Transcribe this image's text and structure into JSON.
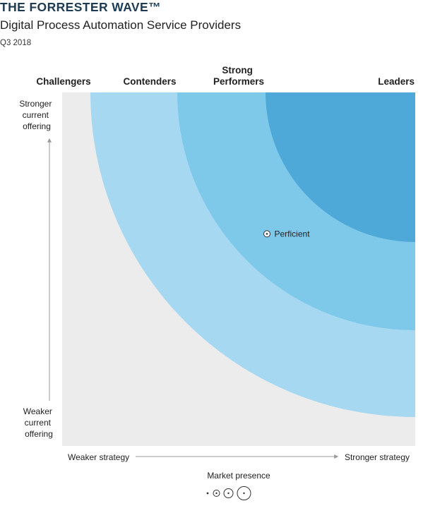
{
  "header": {
    "brand": "THE FORRESTER WAVE™",
    "subtitle": "Digital Process Automation Service Providers",
    "date": "Q3 2018"
  },
  "chart_data": {
    "type": "scatter",
    "title": "Digital Process Automation Service Providers",
    "segments": [
      {
        "label_lines": [
          "Challengers"
        ],
        "color": "#ececec"
      },
      {
        "label_lines": [
          "Contenders"
        ],
        "color": "#a6d8f2"
      },
      {
        "label_lines": [
          "Strong",
          "Performers"
        ],
        "color": "#7ec8ea"
      },
      {
        "label_lines": [
          "Leaders"
        ],
        "color": "#4ea9d8"
      }
    ],
    "y_axis": {
      "top_lines": [
        "Stronger",
        "current",
        "offering"
      ],
      "bottom_lines": [
        "Weaker",
        "current",
        "offering"
      ]
    },
    "x_axis": {
      "left": "Weaker strategy",
      "right": "Stronger strategy"
    },
    "points": [
      {
        "label": "Perficient",
        "strategy": 0.58,
        "offering": 0.6,
        "presence": 1
      }
    ],
    "legend": {
      "title": "Market presence",
      "sizes": [
        0,
        1,
        2,
        3
      ]
    }
  }
}
